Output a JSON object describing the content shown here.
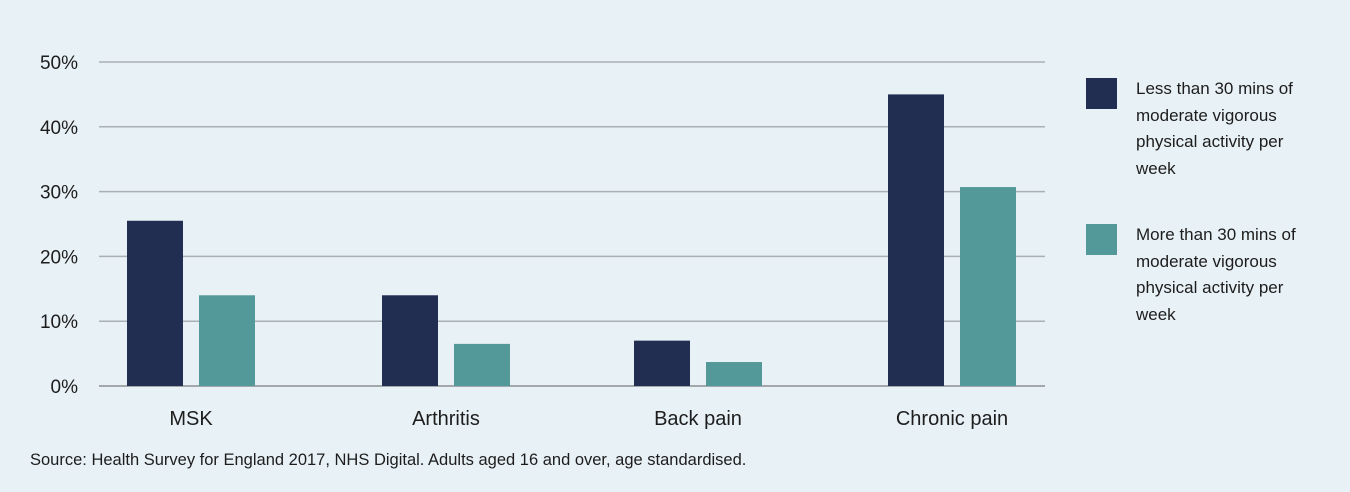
{
  "chart_data": {
    "type": "bar",
    "categories": [
      "MSK",
      "Arthritis",
      "Back pain",
      "Chronic pain"
    ],
    "series": [
      {
        "name": "Less than 30 mins of moderate vigorous physical activity per week",
        "values": [
          25.5,
          14,
          7,
          45
        ],
        "color": "#222d52"
      },
      {
        "name": "More than 30 mins of moderate vigorous physical activity per week",
        "values": [
          14,
          6.5,
          3.7,
          30.7
        ],
        "color": "#54999a"
      }
    ],
    "yticks": [
      "0%",
      "10%",
      "20%",
      "30%",
      "40%",
      "50%"
    ],
    "ylim": [
      0,
      50
    ],
    "grid": true,
    "legend_position": "right"
  },
  "source": "Source: Health Survey for England 2017, NHS Digital. Adults aged 16 and over, age standardised."
}
